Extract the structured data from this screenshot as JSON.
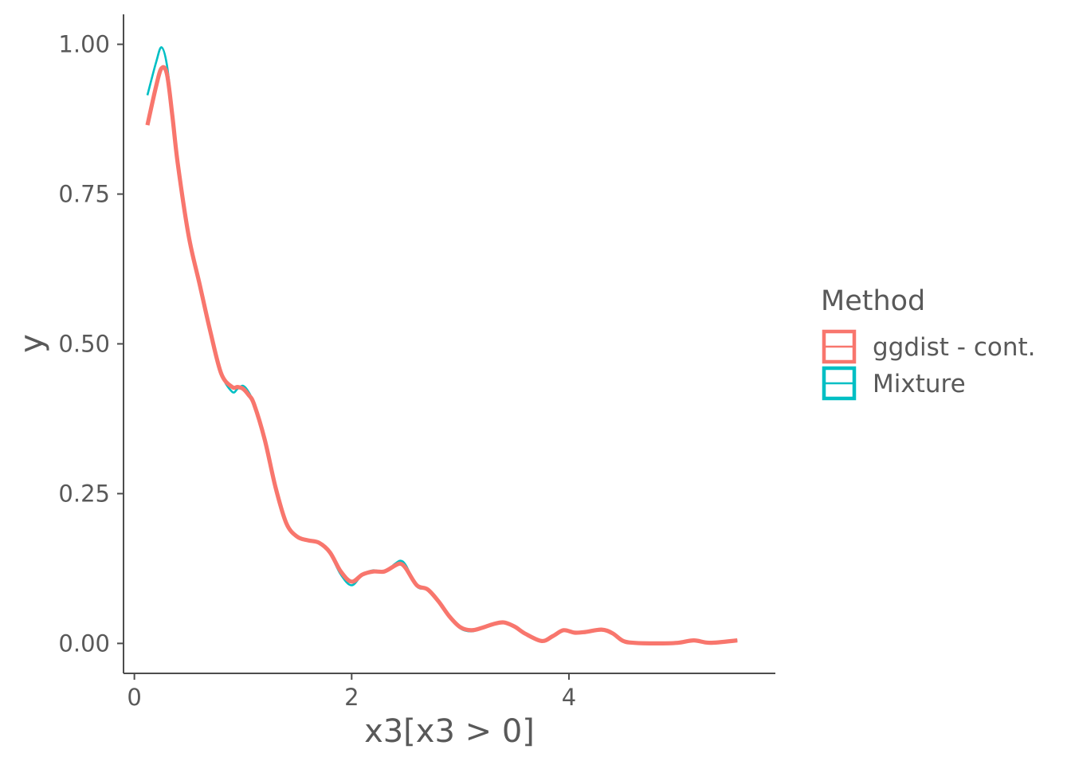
{
  "chart_data": {
    "type": "line",
    "title": "",
    "xlabel": "x3[x3 > 0]",
    "ylabel": "y",
    "xlim": [
      -0.1,
      5.9
    ],
    "ylim": [
      -0.05,
      1.05
    ],
    "x_ticks": [
      0,
      2,
      4
    ],
    "x_tick_labels": [
      "0",
      "2",
      "4"
    ],
    "y_ticks": [
      0,
      0.25,
      0.5,
      0.75,
      1
    ],
    "y_tick_labels": [
      "0.00",
      "0.25",
      "0.50",
      "0.75",
      "1.00"
    ],
    "grid": false,
    "legend": {
      "title": "Method",
      "placement": "right",
      "entries": [
        "ggdist - cont.",
        "Mixture"
      ]
    },
    "series": [
      {
        "name": "Mixture",
        "color": "#00BFC4",
        "x": [
          0.12,
          0.2,
          0.25,
          0.3,
          0.35,
          0.4,
          0.5,
          0.6,
          0.7,
          0.8,
          0.9,
          0.95,
          1.0,
          1.05,
          1.1,
          1.2,
          1.3,
          1.4,
          1.5,
          1.6,
          1.7,
          1.8,
          1.9,
          2.0,
          2.1,
          2.2,
          2.3,
          2.4,
          2.45,
          2.5,
          2.6,
          2.7,
          2.8,
          2.9,
          3.0,
          3.1,
          3.2,
          3.3,
          3.4,
          3.5,
          3.6,
          3.75,
          3.85,
          3.95,
          4.05,
          4.15,
          4.3,
          4.4,
          4.5,
          4.6,
          4.8,
          5.0,
          5.15,
          5.3,
          5.55
        ],
        "y": [
          0.915,
          0.97,
          0.995,
          0.965,
          0.885,
          0.8,
          0.68,
          0.6,
          0.52,
          0.45,
          0.42,
          0.425,
          0.43,
          0.42,
          0.4,
          0.34,
          0.26,
          0.2,
          0.178,
          0.172,
          0.168,
          0.15,
          0.115,
          0.097,
          0.115,
          0.122,
          0.12,
          0.133,
          0.138,
          0.13,
          0.095,
          0.09,
          0.07,
          0.045,
          0.025,
          0.02,
          0.025,
          0.032,
          0.036,
          0.028,
          0.015,
          0.004,
          0.012,
          0.023,
          0.018,
          0.019,
          0.024,
          0.018,
          0.004,
          0.001,
          0.0,
          0.001,
          0.005,
          0.001,
          0.005
        ]
      },
      {
        "name": "ggdist - cont.",
        "color": "#F8766D",
        "x": [
          0.12,
          0.2,
          0.25,
          0.3,
          0.35,
          0.4,
          0.5,
          0.6,
          0.7,
          0.8,
          0.9,
          0.95,
          1.0,
          1.05,
          1.1,
          1.2,
          1.3,
          1.4,
          1.5,
          1.6,
          1.7,
          1.8,
          1.9,
          2.0,
          2.1,
          2.2,
          2.3,
          2.4,
          2.45,
          2.5,
          2.6,
          2.7,
          2.8,
          2.9,
          3.0,
          3.1,
          3.2,
          3.3,
          3.4,
          3.5,
          3.6,
          3.75,
          3.85,
          3.95,
          4.05,
          4.15,
          4.3,
          4.4,
          4.5,
          4.6,
          4.8,
          5.0,
          5.15,
          5.3,
          5.55
        ],
        "y": [
          0.865,
          0.93,
          0.96,
          0.95,
          0.88,
          0.8,
          0.68,
          0.6,
          0.52,
          0.45,
          0.428,
          0.428,
          0.425,
          0.415,
          0.4,
          0.34,
          0.26,
          0.2,
          0.178,
          0.172,
          0.168,
          0.152,
          0.12,
          0.103,
          0.115,
          0.12,
          0.12,
          0.13,
          0.133,
          0.125,
          0.097,
          0.09,
          0.07,
          0.045,
          0.027,
          0.022,
          0.026,
          0.032,
          0.035,
          0.028,
          0.016,
          0.004,
          0.012,
          0.022,
          0.018,
          0.019,
          0.023,
          0.017,
          0.004,
          0.001,
          0.0,
          0.001,
          0.005,
          0.001,
          0.005
        ]
      }
    ]
  }
}
